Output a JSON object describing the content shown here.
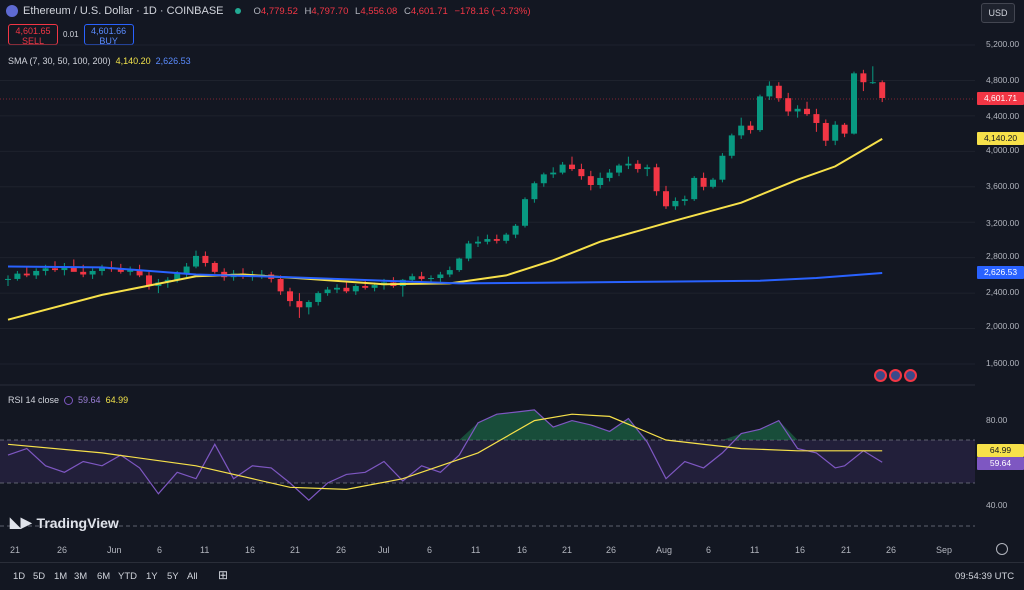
{
  "header": {
    "title": "Ethereum / U.S. Dollar · 1D · COINBASE",
    "ohlc": [
      {
        "label": "O",
        "value": "4,779.52"
      },
      {
        "label": "H",
        "value": "4,797.70"
      },
      {
        "label": "L",
        "value": "4,556.08"
      },
      {
        "label": "C",
        "value": "4,601.71"
      }
    ],
    "change": "−178.16 (−3.73%)",
    "sell_price": "4,601.65",
    "sell_label": "SELL",
    "spread": "0.01",
    "buy_price": "4,601.66",
    "buy_label": "BUY"
  },
  "indicators": {
    "sma_label": "SMA (7, 30, 50, 100, 200)",
    "sma_val_1": "4,140.20",
    "sma_val_2": "2,626.53",
    "rsi_label": "RSI 14 close",
    "rsi_val": "59.64",
    "rsi_ma_val": "64.99"
  },
  "currency": "USD",
  "price_axis": [
    "5,200.00",
    "4,800.00",
    "4,400.00",
    "4,000.00",
    "3,600.00",
    "3,200.00",
    "2,800.00",
    "2,400.00",
    "2,000.00",
    "1,600.00"
  ],
  "price_tags": {
    "last": "4,601.71",
    "sma_fast": "4,140.20",
    "sma_slow": "2,626.53"
  },
  "rsi_axis": [
    "80.00",
    "40.00"
  ],
  "rsi_tags": {
    "ma": "64.99",
    "rsi": "59.64"
  },
  "time_axis": [
    "21",
    "26",
    "Jun",
    "6",
    "11",
    "16",
    "21",
    "26",
    "Jul",
    "6",
    "11",
    "16",
    "21",
    "26",
    "Aug",
    "6",
    "11",
    "16",
    "21",
    "26",
    "Sep"
  ],
  "timeframes": [
    "1D",
    "5D",
    "1M",
    "3M",
    "6M",
    "YTD",
    "1Y",
    "5Y",
    "All"
  ],
  "clock": "09:54:39 UTC",
  "brand": "TradingView",
  "colors": {
    "up": "#089981",
    "down": "#f23645",
    "sma_fast": "#f7e14a",
    "sma_slow": "#2962ff",
    "rsi": "#7e57c2"
  },
  "chart_data": {
    "type": "candlestick",
    "x_start": "May 18",
    "x_end": "Aug 24",
    "candles": [
      [
        2550,
        2600,
        2480,
        2560
      ],
      [
        2560,
        2650,
        2540,
        2620
      ],
      [
        2620,
        2700,
        2580,
        2600
      ],
      [
        2600,
        2680,
        2560,
        2650
      ],
      [
        2650,
        2720,
        2600,
        2680
      ],
      [
        2680,
        2760,
        2640,
        2660
      ],
      [
        2660,
        2740,
        2600,
        2700
      ],
      [
        2700,
        2780,
        2650,
        2640
      ],
      [
        2640,
        2720,
        2580,
        2610
      ],
      [
        2610,
        2680,
        2560,
        2650
      ],
      [
        2650,
        2720,
        2600,
        2690
      ],
      [
        2690,
        2760,
        2640,
        2670
      ],
      [
        2670,
        2730,
        2620,
        2640
      ],
      [
        2640,
        2700,
        2600,
        2660
      ],
      [
        2660,
        2720,
        2580,
        2600
      ],
      [
        2600,
        2640,
        2440,
        2480
      ],
      [
        2480,
        2560,
        2400,
        2520
      ],
      [
        2520,
        2580,
        2460,
        2550
      ],
      [
        2550,
        2650,
        2520,
        2620
      ],
      [
        2620,
        2740,
        2580,
        2700
      ],
      [
        2700,
        2880,
        2680,
        2820
      ],
      [
        2820,
        2870,
        2700,
        2740
      ],
      [
        2740,
        2760,
        2620,
        2640
      ],
      [
        2640,
        2680,
        2540,
        2580
      ],
      [
        2580,
        2660,
        2540,
        2620
      ],
      [
        2620,
        2680,
        2560,
        2590
      ],
      [
        2590,
        2650,
        2540,
        2600
      ],
      [
        2600,
        2660,
        2560,
        2610
      ],
      [
        2610,
        2640,
        2520,
        2560
      ],
      [
        2560,
        2600,
        2380,
        2420
      ],
      [
        2420,
        2460,
        2250,
        2310
      ],
      [
        2310,
        2400,
        2120,
        2240
      ],
      [
        2240,
        2320,
        2160,
        2300
      ],
      [
        2300,
        2420,
        2260,
        2400
      ],
      [
        2400,
        2470,
        2370,
        2440
      ],
      [
        2440,
        2500,
        2400,
        2460
      ],
      [
        2460,
        2520,
        2400,
        2420
      ],
      [
        2420,
        2500,
        2380,
        2480
      ],
      [
        2480,
        2540,
        2440,
        2460
      ],
      [
        2460,
        2520,
        2420,
        2490
      ],
      [
        2490,
        2560,
        2440,
        2520
      ],
      [
        2520,
        2580,
        2460,
        2480
      ],
      [
        2480,
        2560,
        2360,
        2550
      ],
      [
        2550,
        2620,
        2520,
        2590
      ],
      [
        2590,
        2640,
        2540,
        2560
      ],
      [
        2560,
        2600,
        2500,
        2570
      ],
      [
        2570,
        2640,
        2520,
        2610
      ],
      [
        2610,
        2700,
        2580,
        2660
      ],
      [
        2660,
        2800,
        2640,
        2790
      ],
      [
        2790,
        2990,
        2760,
        2960
      ],
      [
        2960,
        3040,
        2920,
        2980
      ],
      [
        2980,
        3060,
        2950,
        3010
      ],
      [
        3010,
        3060,
        2960,
        2990
      ],
      [
        2990,
        3080,
        2960,
        3060
      ],
      [
        3060,
        3180,
        3020,
        3160
      ],
      [
        3160,
        3480,
        3140,
        3460
      ],
      [
        3460,
        3660,
        3420,
        3640
      ],
      [
        3640,
        3760,
        3600,
        3740
      ],
      [
        3740,
        3820,
        3700,
        3760
      ],
      [
        3760,
        3880,
        3740,
        3850
      ],
      [
        3850,
        3940,
        3780,
        3800
      ],
      [
        3800,
        3860,
        3680,
        3720
      ],
      [
        3720,
        3780,
        3560,
        3620
      ],
      [
        3620,
        3760,
        3580,
        3700
      ],
      [
        3700,
        3800,
        3660,
        3760
      ],
      [
        3760,
        3860,
        3720,
        3840
      ],
      [
        3840,
        3940,
        3800,
        3860
      ],
      [
        3860,
        3900,
        3760,
        3800
      ],
      [
        3800,
        3850,
        3720,
        3820
      ],
      [
        3820,
        3860,
        3500,
        3550
      ],
      [
        3550,
        3610,
        3350,
        3380
      ],
      [
        3380,
        3480,
        3340,
        3440
      ],
      [
        3440,
        3500,
        3390,
        3460
      ],
      [
        3460,
        3720,
        3440,
        3700
      ],
      [
        3700,
        3760,
        3560,
        3600
      ],
      [
        3600,
        3700,
        3580,
        3680
      ],
      [
        3680,
        3980,
        3650,
        3950
      ],
      [
        3950,
        4200,
        3920,
        4180
      ],
      [
        4180,
        4380,
        4140,
        4290
      ],
      [
        4290,
        4340,
        4200,
        4240
      ],
      [
        4240,
        4640,
        4220,
        4620
      ],
      [
        4620,
        4790,
        4580,
        4740
      ],
      [
        4740,
        4780,
        4560,
        4600
      ],
      [
        4600,
        4660,
        4400,
        4450
      ],
      [
        4450,
        4520,
        4380,
        4480
      ],
      [
        4480,
        4560,
        4400,
        4420
      ],
      [
        4420,
        4480,
        4220,
        4320
      ],
      [
        4320,
        4360,
        4060,
        4120
      ],
      [
        4120,
        4340,
        4070,
        4300
      ],
      [
        4300,
        4320,
        4160,
        4200
      ],
      [
        4200,
        4900,
        4190,
        4880
      ],
      [
        4880,
        4920,
        4680,
        4780
      ],
      [
        4780,
        4960,
        4760,
        4780
      ],
      [
        4780,
        4800,
        4556,
        4602
      ]
    ],
    "sma_fast": [
      [
        0,
        2100
      ],
      [
        10,
        2380
      ],
      [
        20,
        2590
      ],
      [
        25,
        2610
      ],
      [
        32,
        2560
      ],
      [
        40,
        2500
      ],
      [
        47,
        2510
      ],
      [
        53,
        2600
      ],
      [
        58,
        2770
      ],
      [
        63,
        2980
      ],
      [
        70,
        3190
      ],
      [
        78,
        3420
      ],
      [
        84,
        3680
      ],
      [
        88,
        3830
      ],
      [
        93,
        4140
      ]
    ],
    "sma_slow": [
      [
        0,
        2700
      ],
      [
        10,
        2690
      ],
      [
        20,
        2610
      ],
      [
        30,
        2580
      ],
      [
        40,
        2540
      ],
      [
        48,
        2510
      ],
      [
        60,
        2520
      ],
      [
        70,
        2530
      ],
      [
        80,
        2540
      ],
      [
        86,
        2570
      ],
      [
        93,
        2627
      ]
    ],
    "rsi": [
      [
        0,
        63
      ],
      [
        2,
        66
      ],
      [
        4,
        58
      ],
      [
        6,
        55
      ],
      [
        8,
        60
      ],
      [
        10,
        58
      ],
      [
        12,
        63
      ],
      [
        14,
        57
      ],
      [
        16,
        45
      ],
      [
        18,
        55
      ],
      [
        20,
        52
      ],
      [
        22,
        68
      ],
      [
        24,
        52
      ],
      [
        26,
        58
      ],
      [
        28,
        57
      ],
      [
        30,
        50
      ],
      [
        32,
        42
      ],
      [
        34,
        50
      ],
      [
        36,
        54
      ],
      [
        38,
        55
      ],
      [
        40,
        60
      ],
      [
        42,
        51
      ],
      [
        44,
        58
      ],
      [
        46,
        55
      ],
      [
        48,
        63
      ],
      [
        50,
        78
      ],
      [
        52,
        82
      ],
      [
        54,
        83
      ],
      [
        56,
        84
      ],
      [
        58,
        76
      ],
      [
        60,
        79
      ],
      [
        62,
        77
      ],
      [
        64,
        74
      ],
      [
        66,
        80
      ],
      [
        68,
        69
      ],
      [
        70,
        52
      ],
      [
        72,
        60
      ],
      [
        74,
        57
      ],
      [
        76,
        64
      ],
      [
        78,
        73
      ],
      [
        80,
        75
      ],
      [
        82,
        79
      ],
      [
        84,
        66
      ],
      [
        86,
        64
      ],
      [
        88,
        57
      ],
      [
        89,
        58
      ],
      [
        91,
        65
      ],
      [
        93,
        59.64
      ]
    ],
    "rsi_ma": [
      [
        0,
        68
      ],
      [
        10,
        64
      ],
      [
        20,
        58
      ],
      [
        30,
        48
      ],
      [
        36,
        47
      ],
      [
        42,
        52
      ],
      [
        50,
        64
      ],
      [
        56,
        79
      ],
      [
        60,
        82
      ],
      [
        64,
        81
      ],
      [
        70,
        70
      ],
      [
        78,
        66
      ],
      [
        84,
        65
      ],
      [
        90,
        65
      ],
      [
        93,
        64.99
      ]
    ],
    "ylim": [
      1600,
      5200
    ],
    "rsi_ylim": [
      30,
      90
    ]
  }
}
